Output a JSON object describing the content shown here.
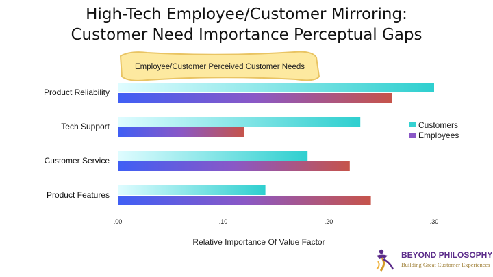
{
  "title": {
    "line1": "High-Tech Employee/Customer Mirroring:",
    "line2": "Customer Need Importance Perceptual Gaps"
  },
  "banner": "Employee/Customer Perceived Customer Needs",
  "chart_data": {
    "type": "bar",
    "orientation": "horizontal",
    "categories": [
      "Product Reliability",
      "Tech Support",
      "Customer Service",
      "Product Features"
    ],
    "series": [
      {
        "name": "Customers",
        "values": [
          0.3,
          0.23,
          0.18,
          0.14
        ]
      },
      {
        "name": "Employees",
        "values": [
          0.26,
          0.12,
          0.22,
          0.24
        ]
      }
    ],
    "xlim": [
      0,
      0.3
    ],
    "ticks": [
      ".00",
      ".10",
      ".20",
      ".30"
    ],
    "tick_values": [
      0,
      0.1,
      0.2,
      0.3
    ],
    "xlabel": "Relative Importance Of Value Factor",
    "legend_position": "right",
    "grid": false,
    "colors": {
      "customers_start": "#dffcff",
      "customers_end": "#2ecfcf",
      "employees_start": "#3f5ff5",
      "employees_mid": "#8a58c6",
      "employees_end": "#c6544a",
      "legend_customers": "#35d1d1",
      "legend_employees": "#8a58c6",
      "banner_fill": "#fde9a0",
      "banner_stroke": "#e9c463"
    }
  },
  "logo": {
    "name": "BEYOND PHILOSOPHY",
    "tagline": "Building Great Customer Experiences",
    "icon": "figure-swirl-icon"
  }
}
